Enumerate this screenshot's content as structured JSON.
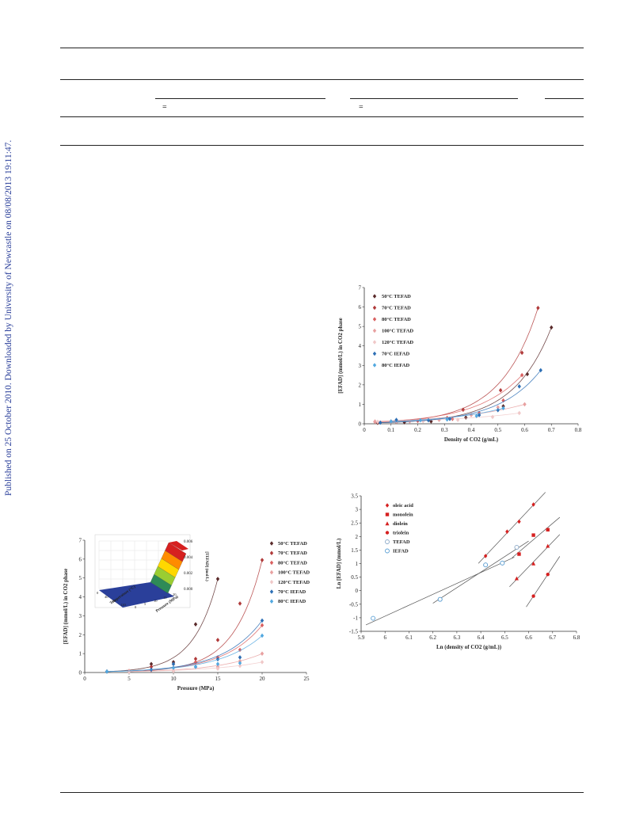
{
  "sidebar_note": "Published on 25 October 2010. Downloaded by University of Newcastle on 08/08/2013 19:11:47.",
  "table_fragment": {
    "eq1": "=",
    "eq2": "="
  },
  "chart_data": [
    {
      "type": "scatter",
      "xlabel": "Density of CO2 (g/mL)",
      "ylabel": "[EFAD] (mmol/L) in CO2 phase",
      "xlim": [
        0,
        0.8
      ],
      "ylim": [
        0,
        7
      ],
      "xticks": [
        "0",
        "0.1",
        "0.2",
        "0.3",
        "0.4",
        "0.5",
        "0.6",
        "0.7",
        "0.8"
      ],
      "yticks": [
        "0",
        "1",
        "2",
        "3",
        "4",
        "5",
        "6",
        "7"
      ],
      "legend_position": "top-left",
      "series": [
        {
          "name": "50°C TEFAD",
          "color": "#5a2a2a",
          "x": [
            0.05,
            0.15,
            0.25,
            0.38,
            0.52,
            0.61,
            0.7
          ],
          "y": [
            0.05,
            0.08,
            0.12,
            0.32,
            0.9,
            2.55,
            4.95
          ]
        },
        {
          "name": "70°C TEFAD",
          "color": "#b03a3a",
          "x": [
            0.05,
            0.12,
            0.22,
            0.31,
            0.37,
            0.51,
            0.59,
            0.65
          ],
          "y": [
            0.08,
            0.1,
            0.15,
            0.3,
            0.72,
            1.72,
            3.65,
            5.95
          ]
        },
        {
          "name": "80°C TEFAD",
          "color": "#d96060",
          "x": [
            0.04,
            0.1,
            0.2,
            0.33,
            0.43,
            0.52,
            0.59
          ],
          "y": [
            0.1,
            0.12,
            0.15,
            0.25,
            0.55,
            1.2,
            2.5
          ]
        },
        {
          "name": "100°C TEFAD",
          "color": "#e8a0a0",
          "x": [
            0.04,
            0.1,
            0.17,
            0.28,
            0.4,
            0.5,
            0.6
          ],
          "y": [
            0.12,
            0.1,
            0.12,
            0.2,
            0.45,
            0.85,
            1.0
          ]
        },
        {
          "name": "120°C TEFAD",
          "color": "#f0c8c8",
          "x": [
            0.05,
            0.12,
            0.22,
            0.35,
            0.48,
            0.58
          ],
          "y": [
            0.1,
            0.12,
            0.14,
            0.2,
            0.35,
            0.55
          ]
        },
        {
          "name": "70°C IEFAD",
          "color": "#2d6fb5",
          "x": [
            0.06,
            0.12,
            0.24,
            0.32,
            0.43,
            0.5,
            0.58,
            0.66
          ],
          "y": [
            0.06,
            0.2,
            0.18,
            0.25,
            0.45,
            0.7,
            1.92,
            2.75
          ]
        },
        {
          "name": "80°C IEFAD",
          "color": "#52a8e0",
          "x": [
            0.1,
            0.21,
            0.31,
            0.42,
            0.52
          ],
          "y": [
            0.12,
            0.18,
            0.22,
            0.4,
            0.8
          ]
        }
      ]
    },
    {
      "type": "scatter",
      "xlabel": "Pressure (MPa)",
      "ylabel": "[EFAD] (mmol/L) in CO2 phase",
      "xlim": [
        0,
        25
      ],
      "ylim": [
        0,
        7
      ],
      "xticks": [
        "0",
        "5",
        "10",
        "15",
        "20",
        "25"
      ],
      "yticks": [
        "0",
        "1",
        "2",
        "3",
        "4",
        "5",
        "6",
        "7"
      ],
      "legend_position": "right",
      "series": [
        {
          "name": "50°C TEFAD",
          "color": "#5a2a2a",
          "x": [
            2.5,
            7.5,
            10,
            12.5,
            15
          ],
          "y": [
            0.05,
            0.45,
            0.55,
            2.55,
            4.95
          ]
        },
        {
          "name": "70°C TEFAD",
          "color": "#b03a3a",
          "x": [
            5,
            7.5,
            10,
            12.5,
            15,
            17.5,
            20
          ],
          "y": [
            0.05,
            0.3,
            0.45,
            0.72,
            1.72,
            3.65,
            5.95
          ]
        },
        {
          "name": "80°C TEFAD",
          "color": "#d96060",
          "x": [
            5,
            7.5,
            10,
            12.5,
            15,
            17.5,
            20
          ],
          "y": [
            0.08,
            0.12,
            0.25,
            0.55,
            0.8,
            1.2,
            2.5
          ]
        },
        {
          "name": "100°C TEFAD",
          "color": "#e8a0a0",
          "x": [
            5,
            10,
            15,
            17.5,
            20
          ],
          "y": [
            0.05,
            0.1,
            0.3,
            0.6,
            1.0
          ]
        },
        {
          "name": "120°C TEFAD",
          "color": "#f0c8c8",
          "x": [
            5,
            10,
            15,
            17.5,
            20
          ],
          "y": [
            0.05,
            0.08,
            0.2,
            0.35,
            0.55
          ]
        },
        {
          "name": "70°C IEFAD",
          "color": "#2d6fb5",
          "x": [
            2.5,
            7.5,
            10,
            12.5,
            15,
            17.5,
            20
          ],
          "y": [
            0.05,
            0.15,
            0.45,
            0.3,
            0.7,
            0.8,
            2.75
          ]
        },
        {
          "name": "80°C IEFAD",
          "color": "#52a8e0",
          "x": [
            2.5,
            10,
            12.5,
            15,
            17.5,
            20
          ],
          "y": [
            0.05,
            0.25,
            0.3,
            0.45,
            0.5,
            1.95
          ]
        }
      ],
      "inset": {
        "type": "surface",
        "xlabel": "Pressure (MPa)",
        "ylabel": "Temperature (°C)",
        "zlabel": "[TEFAD] (mol/L)",
        "zticks": [
          "0.000",
          "0.002",
          "0.004",
          "0.006"
        ],
        "tempticks": [
          "0",
          "40",
          "80",
          "120"
        ],
        "pressticks": [
          "0",
          "5",
          "10",
          "15",
          "20"
        ],
        "colors": [
          "#2a3f9a",
          "#2e8b57",
          "#9acd32",
          "#ffd700",
          "#ff8c00",
          "#d62020"
        ]
      }
    },
    {
      "type": "scatter",
      "xlabel": "Ln (density of CO2 (g/mL))",
      "ylabel": "Ln [EFAD] (mmol/L)",
      "xlim": [
        5.9,
        6.8
      ],
      "ylim": [
        -1.5,
        3.5
      ],
      "xticks": [
        "5.9",
        "6",
        "6.1",
        "6.2",
        "6.3",
        "6.4",
        "6.5",
        "6.6",
        "6.7",
        "6.8"
      ],
      "yticks": [
        "-1.5",
        "-1",
        "-0.5",
        "0",
        "0.5",
        "1",
        "1.5",
        "2",
        "2.5",
        "3",
        "3.5"
      ],
      "legend_position": "top-left",
      "series": [
        {
          "name": "oleic acid",
          "marker": "diamond",
          "color": "#d62020",
          "x": [
            6.42,
            6.51,
            6.56,
            6.62
          ],
          "y": [
            1.28,
            2.18,
            2.55,
            3.18
          ]
        },
        {
          "name": "monolein",
          "marker": "square",
          "color": "#d62020",
          "x": [
            6.56,
            6.62,
            6.68
          ],
          "y": [
            1.35,
            2.05,
            2.25
          ]
        },
        {
          "name": "diolein",
          "marker": "triangle",
          "color": "#d62020",
          "x": [
            6.55,
            6.62,
            6.68
          ],
          "y": [
            0.45,
            1.0,
            1.65
          ]
        },
        {
          "name": "triolein",
          "marker": "circle",
          "color": "#d62020",
          "x": [
            6.62,
            6.68
          ],
          "y": [
            -0.2,
            0.6
          ]
        },
        {
          "name": "TEFAD",
          "marker": "open-circle",
          "color": "#8aa8c8",
          "x": [
            6.23,
            6.42,
            6.49,
            6.55
          ],
          "y": [
            -0.32,
            0.95,
            1.02,
            1.6
          ]
        },
        {
          "name": "IEFAD",
          "marker": "open-circle",
          "color": "#5a9fd4",
          "x": [
            5.95,
            6.23,
            6.42,
            6.49
          ],
          "y": [
            -1.02,
            -0.32,
            0.95,
            1.02
          ]
        }
      ]
    }
  ]
}
